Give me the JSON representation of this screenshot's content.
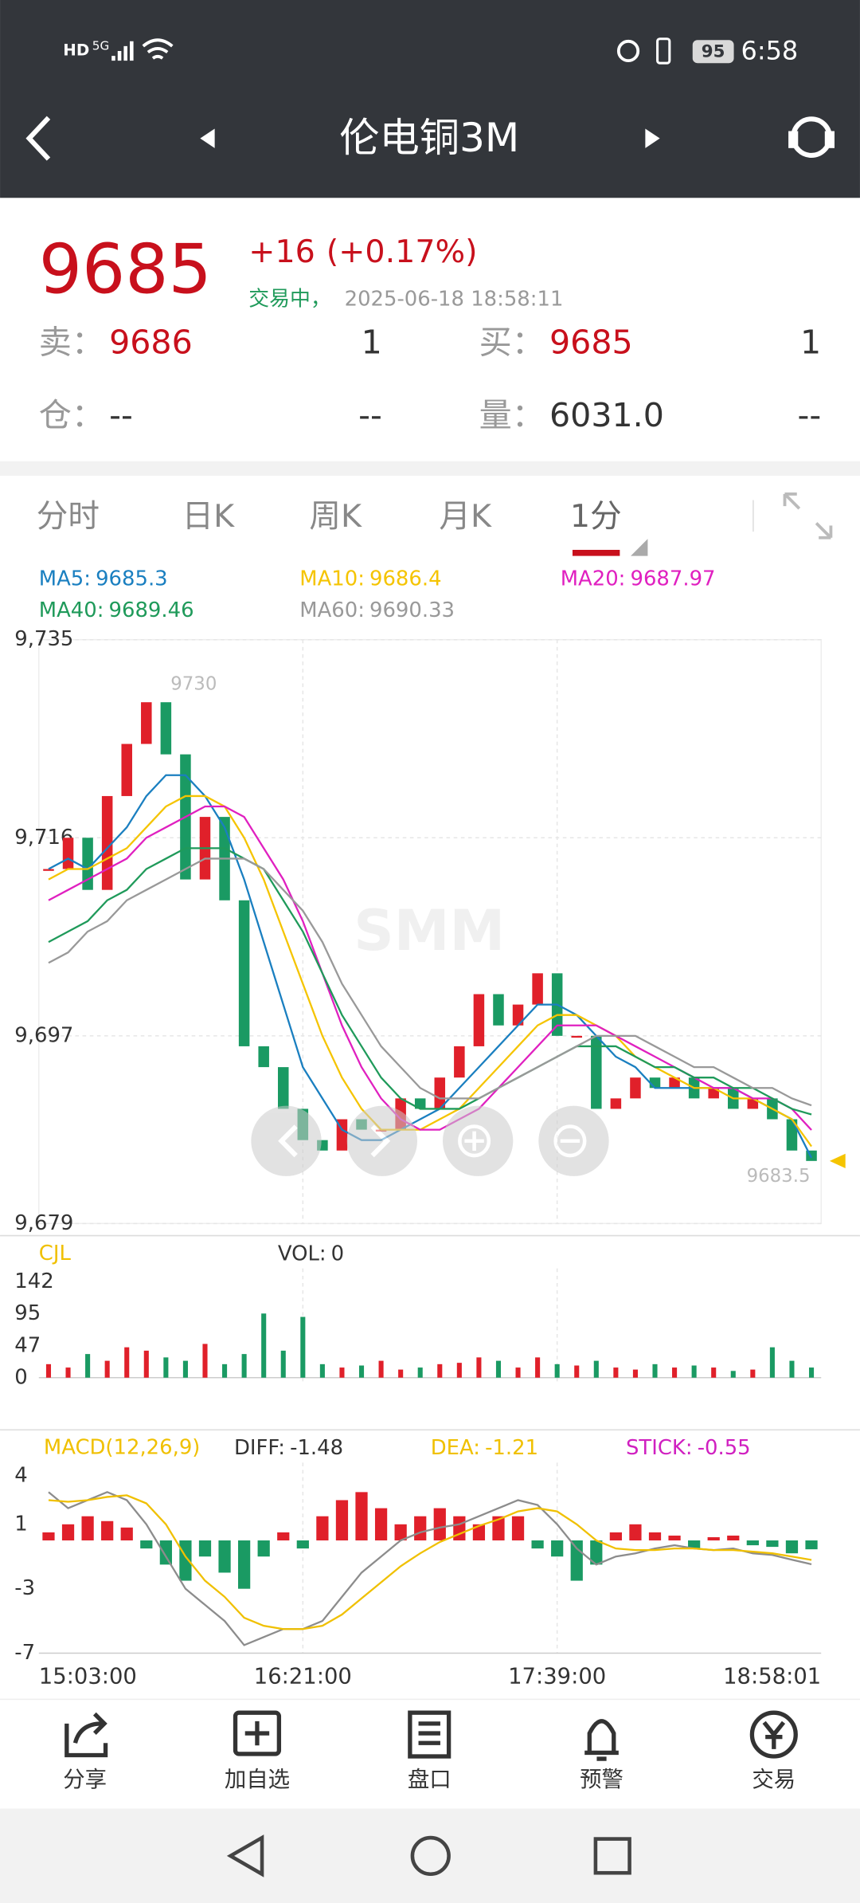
{
  "status_bar": {
    "left": "HD",
    "network": "5G",
    "battery": "95",
    "time": "6:58"
  },
  "header": {
    "title": "伦电铜3M"
  },
  "quote": {
    "price": "9685",
    "change": "+16",
    "change_pct": "(+0.17%)",
    "status": "交易中，",
    "time": "2025-06-18 18:58:11",
    "rows": [
      [
        "卖：",
        "9686",
        "1",
        "买：",
        "9685",
        "1"
      ],
      [
        "仓：",
        "--",
        "--",
        "量：",
        "6031.0",
        "--"
      ]
    ]
  },
  "tabs": [
    "分时",
    "日K",
    "周K",
    "月K",
    "1分"
  ],
  "price_chart": {
    "type": "candlestick",
    "watermark": "SMM",
    "ylim": [
      9679,
      9735
    ],
    "yticks": [
      {
        "value": 9735,
        "label": "9,735"
      },
      {
        "value": 9716,
        "label": "9,716"
      },
      {
        "value": 9697,
        "label": "9,697"
      },
      {
        "value": 9679,
        "label": "9,679"
      }
    ],
    "categories": [
      "15:03:00",
      null,
      null,
      null,
      null,
      null,
      null,
      null,
      null,
      null,
      null,
      null,
      null,
      "16:21:00",
      null,
      null,
      null,
      null,
      null,
      null,
      null,
      null,
      null,
      null,
      null,
      null,
      "17:39:00",
      null,
      null,
      null,
      null,
      null,
      null,
      null,
      null,
      null,
      null,
      null,
      null,
      "18:58:01"
    ],
    "close": [
      9713,
      9716,
      9711,
      9720,
      9725,
      9729,
      9724,
      9712,
      9718,
      9710,
      9696,
      9694,
      9690,
      9687,
      9686,
      9689,
      9688,
      9688,
      9691,
      9690,
      9693,
      9696,
      9701,
      9698,
      9700,
      9703,
      9697,
      9697,
      9690,
      9691,
      9693,
      9692,
      9693,
      9691,
      9692,
      9690,
      9691,
      9689,
      9686,
      9685
    ],
    "up_color": "#e0202a",
    "down_color": "#1a9a63",
    "high_mark": 9730,
    "low_mark": 9683.5,
    "series": [
      {
        "name": "MA5:",
        "color": "#1a7fc0",
        "values": [
          9713,
          9714,
          9713,
          9715,
          9717,
          9720,
          9722,
          9722,
          9720,
          9717,
          9712,
          9706,
          9700,
          9694,
          9691,
          9688,
          9687,
          9687,
          9688,
          9689,
          9690,
          9692,
          9694,
          9696,
          9698,
          9700,
          9700,
          9699,
          9697,
          9695,
          9694,
          9692,
          9692,
          9692,
          9692,
          9692,
          9691,
          9690,
          9689,
          9685.3
        ]
      },
      {
        "name": "MA10:",
        "color": "#f5c400",
        "values": [
          9712,
          9713,
          9713,
          9714,
          9715,
          9717,
          9719,
          9720,
          9720,
          9719,
          9716,
          9712,
          9707,
          9702,
          9697,
          9693,
          9690,
          9688,
          9688,
          9688,
          9689,
          9690,
          9692,
          9694,
          9696,
          9698,
          9699,
          9699,
          9698,
          9697,
          9695,
          9694,
          9693,
          9692,
          9692,
          9691,
          9691,
          9690,
          9689,
          9686.4
        ]
      },
      {
        "name": "MA20:",
        "color": "#e020c0",
        "values": [
          9710,
          9711,
          9712,
          9713,
          9714,
          9716,
          9717,
          9718,
          9719,
          9719,
          9718,
          9715,
          9712,
          9708,
          9703,
          9698,
          9694,
          9691,
          9689,
          9688,
          9688,
          9689,
          9690,
          9692,
          9694,
          9696,
          9698,
          9698,
          9698,
          9697,
          9696,
          9695,
          9694,
          9693,
          9692,
          9692,
          9691,
          9691,
          9690,
          9687.97
        ]
      },
      {
        "name": "MA40:",
        "color": "#1f9a5a",
        "values": [
          9706,
          9707,
          9708,
          9710,
          9711,
          9713,
          9714,
          9715,
          9715,
          9715,
          9714,
          9713,
          9710,
          9707,
          9703,
          9699,
          9696,
          9693,
          9691,
          9690,
          9690,
          9690,
          9691,
          9692,
          9693,
          9694,
          9695,
          9696,
          9696,
          9696,
          9695,
          9694,
          9694,
          9693,
          9693,
          9692,
          9692,
          9691,
          9690,
          9689.46
        ]
      },
      {
        "name": "MA60:",
        "color": "#999999",
        "values": [
          9704,
          9705,
          9707,
          9708,
          9710,
          9711,
          9712,
          9713,
          9714,
          9714,
          9714,
          9713,
          9711,
          9709,
          9706,
          9702,
          9699,
          9696,
          9694,
          9692,
          9691,
          9691,
          9691,
          9692,
          9693,
          9694,
          9695,
          9696,
          9697,
          9697,
          9697,
          9696,
          9695,
          9694,
          9694,
          9693,
          9692,
          9692,
          9691,
          9690.33
        ]
      }
    ]
  },
  "volume_chart": {
    "title": "CJL",
    "vol_label": "VOL:",
    "vol_value": 0,
    "ylim": [
      0,
      142
    ],
    "yticks": [
      0,
      47,
      95,
      142
    ],
    "values": [
      20,
      15,
      35,
      25,
      45,
      40,
      30,
      25,
      50,
      20,
      35,
      95,
      40,
      90,
      20,
      15,
      18,
      25,
      12,
      15,
      20,
      22,
      30,
      25,
      15,
      30,
      20,
      18,
      25,
      15,
      12,
      20,
      15,
      18,
      15,
      10,
      12,
      45,
      25,
      15
    ]
  },
  "macd_chart": {
    "title": "MACD(12,26,9)",
    "ylim": [
      -7,
      4
    ],
    "yticks": [
      4,
      1,
      -3,
      -7
    ],
    "lines": [
      {
        "name": "DIFF:",
        "color": "#8c8c8c",
        "values": [
          3,
          2,
          2.5,
          3,
          2.5,
          1,
          -1,
          -3,
          -4,
          -5,
          -6.5,
          -6,
          -5.5,
          -5.5,
          -5,
          -3.5,
          -2,
          -1,
          0,
          0.5,
          0.8,
          1,
          1.5,
          2,
          2.5,
          2.2,
          1,
          -0.5,
          -1.5,
          -1,
          -0.8,
          -0.5,
          -0.3,
          -0.5,
          -0.6,
          -0.5,
          -0.8,
          -0.9,
          -1.2,
          -1.48
        ]
      },
      {
        "name": "DEA:",
        "color": "#f0c000",
        "values": [
          2.5,
          2.4,
          2.5,
          2.7,
          2.8,
          2.3,
          1,
          -1,
          -2.5,
          -3.5,
          -4.8,
          -5.3,
          -5.5,
          -5.5,
          -5.3,
          -4.6,
          -3.6,
          -2.6,
          -1.6,
          -0.8,
          -0.1,
          0.4,
          0.9,
          1.3,
          1.8,
          2,
          1.8,
          1,
          0,
          -0.5,
          -0.6,
          -0.6,
          -0.5,
          -0.5,
          -0.6,
          -0.6,
          -0.7,
          -0.8,
          -1,
          -1.21
        ]
      }
    ],
    "stick": {
      "name": "STICK:",
      "color": "#d020c0",
      "values": [
        0.5,
        1,
        1.5,
        1.2,
        0.8,
        -0.5,
        -1.5,
        -2.5,
        -1,
        -2,
        -3,
        -1,
        0.5,
        -0.5,
        1.5,
        2.5,
        3,
        2,
        1,
        1.5,
        2,
        1.5,
        1,
        1.5,
        1.5,
        -0.5,
        -1,
        -2.5,
        -1.5,
        0.5,
        1,
        0.5,
        0.3,
        -0.5,
        0.2,
        0.3,
        -0.3,
        -0.4,
        -0.8,
        -0.55
      ]
    }
  },
  "bottom_nav": [
    "分享",
    "加自选",
    "盘口",
    "预警",
    "交易"
  ]
}
